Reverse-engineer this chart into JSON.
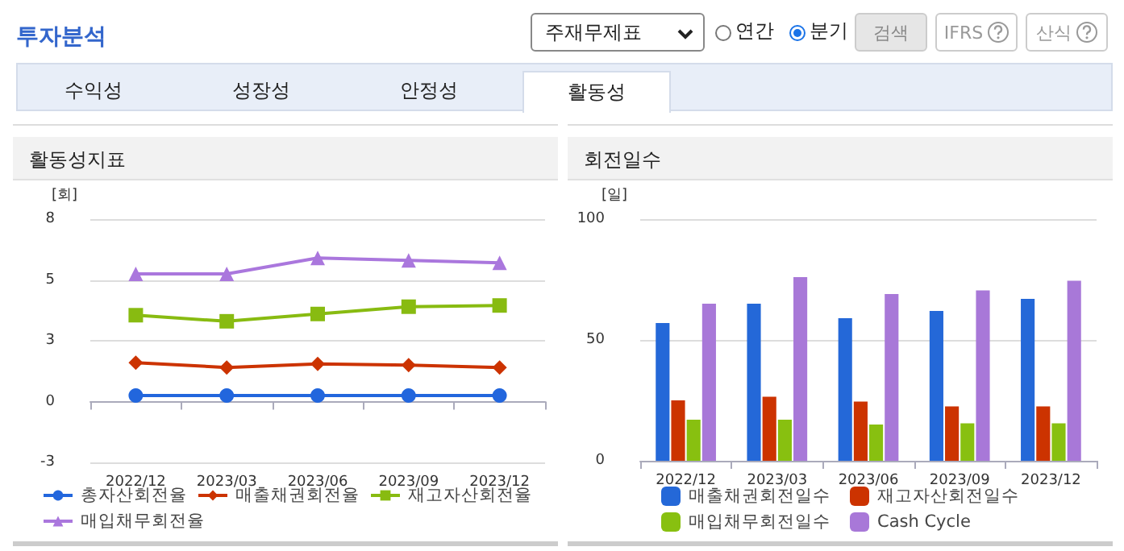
{
  "chart_data": [
    {
      "type": "other",
      "title": "투자분석",
      "annotations": [
        "주재무제표",
        "연간",
        "분기",
        "검색",
        "IFRS",
        "산식",
        "수익성",
        "성장성",
        "안정성",
        "활동성"
      ]
    },
    {
      "type": "line",
      "title": "활동성지표",
      "ylabel": "[회]",
      "categories": [
        "2022/12",
        "2023/03",
        "2023/06",
        "2023/09",
        "2023/12"
      ],
      "series": [
        {
          "name": "총자산회전율",
          "color": "#2266dd",
          "marker": "circle",
          "values": [
            0.25,
            0.25,
            0.25,
            0.25,
            0.25
          ]
        },
        {
          "name": "매출채권회전율",
          "color": "#cc3300",
          "marker": "diamond",
          "values": [
            1.6,
            1.4,
            1.55,
            1.5,
            1.4
          ]
        },
        {
          "name": "재고자산회전율",
          "color": "#88bb11",
          "marker": "square",
          "values": [
            3.55,
            3.3,
            3.6,
            3.9,
            3.95
          ]
        },
        {
          "name": "매입채무회전율",
          "color": "#aa77dd",
          "marker": "triangle",
          "values": [
            5.25,
            5.25,
            5.9,
            5.8,
            5.7
          ]
        }
      ],
      "ylim": [
        -2.5,
        7.5
      ],
      "yticks": [
        {
          "value": -2.5,
          "label": "-3"
        },
        {
          "value": 0,
          "label": "0"
        },
        {
          "value": 2.5,
          "label": "3"
        },
        {
          "value": 5,
          "label": "5"
        },
        {
          "value": 7.5,
          "label": "8"
        }
      ],
      "grid": "y",
      "legend": "bottom"
    },
    {
      "type": "bar",
      "title": "회전일수",
      "ylabel": "[일]",
      "categories": [
        "2022/12",
        "2023/03",
        "2023/06",
        "2023/09",
        "2023/12"
      ],
      "series": [
        {
          "name": "매출채권회전일수",
          "color": "#2468d8",
          "values": [
            57,
            65,
            59,
            62,
            67
          ]
        },
        {
          "name": "재고자산회전일수",
          "color": "#cc3300",
          "values": [
            25,
            26.5,
            24.5,
            22.5,
            22.5
          ]
        },
        {
          "name": "매입채무회전일수",
          "color": "#88c010",
          "values": [
            17,
            17,
            15,
            15.5,
            15.5
          ]
        },
        {
          "name": "Cash Cycle",
          "color": "#a878d8",
          "values": [
            65,
            76,
            69,
            70.5,
            74.5
          ]
        }
      ],
      "ylim": [
        0,
        100
      ],
      "yticks": [
        0,
        50,
        100
      ],
      "grid": "y",
      "legend": "bottom"
    }
  ]
}
